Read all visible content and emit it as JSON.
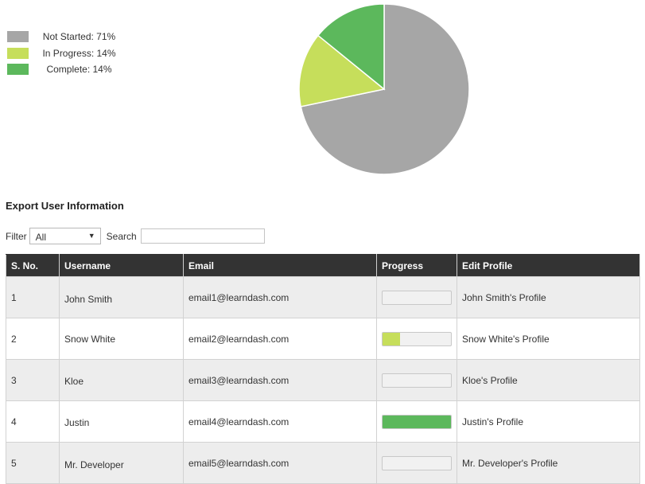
{
  "chart_data": {
    "type": "pie",
    "slices": [
      {
        "label": "Not Started: 71%",
        "value": 71,
        "color": "#a6a6a6"
      },
      {
        "label": "In Progress: 14%",
        "value": 14,
        "color": "#c6de5b"
      },
      {
        "label": "Complete: 14%",
        "value": 14,
        "color": "#5cb85c"
      }
    ],
    "legend_position": "top-left"
  },
  "export": {
    "title": "Export User Information"
  },
  "filter": {
    "label": "Filter",
    "selected": "All",
    "arrow": "▼"
  },
  "search": {
    "label": "Search",
    "value": "",
    "placeholder": ""
  },
  "table": {
    "headers": [
      "S. No.",
      "Username",
      "Email",
      "Progress",
      "Edit Profile"
    ],
    "rows": [
      {
        "sno": "1",
        "username": "John Smith",
        "email": "email1@learndash.com",
        "progress": 0,
        "progress_color": "#c6de5b",
        "profile": "John Smith's Profile"
      },
      {
        "sno": "2",
        "username": "Snow White",
        "email": "email2@learndash.com",
        "progress": 0.25,
        "progress_color": "#c6de5b",
        "profile": "Snow White's Profile"
      },
      {
        "sno": "3",
        "username": "Kloe",
        "email": "email3@learndash.com",
        "progress": 0,
        "progress_color": "#c6de5b",
        "profile": "Kloe's Profile"
      },
      {
        "sno": "4",
        "username": "Justin",
        "email": "email4@learndash.com",
        "progress": 1,
        "progress_color": "#5cb85c",
        "profile": "Justin's Profile"
      },
      {
        "sno": "5",
        "username": "Mr. Developer",
        "email": "email5@learndash.com",
        "progress": 0,
        "progress_color": "#c6de5b",
        "profile": "Mr. Developer's Profile"
      }
    ]
  }
}
